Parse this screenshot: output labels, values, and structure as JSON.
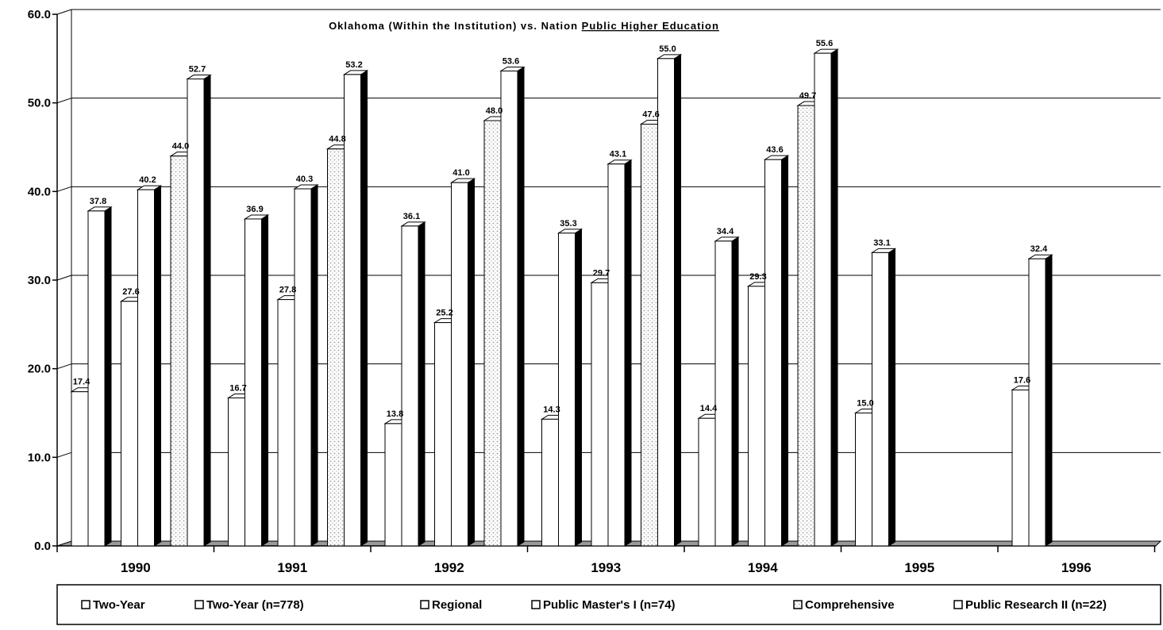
{
  "chart_data": {
    "type": "bar",
    "title": "Oklahoma (Within the Institution) vs. Nation ",
    "title_underlined": "Public Higher Education",
    "xlabel": "",
    "ylabel": "",
    "ylim": [
      0,
      60
    ],
    "yticks": [
      "0.0",
      "10.0",
      "20.0",
      "30.0",
      "40.0",
      "50.0",
      "60.0"
    ],
    "grid": true,
    "legend_position": "bottom",
    "categories": [
      "1990",
      "1991",
      "1992",
      "1993",
      "1994",
      "1995",
      "1996"
    ],
    "series": [
      {
        "name": "Two-Year",
        "pattern": "plain",
        "values": [
          17.4,
          16.7,
          13.8,
          14.3,
          14.4,
          15.0,
          17.6
        ]
      },
      {
        "name": "Two-Year (n=778)",
        "pattern": "plain",
        "values": [
          37.8,
          36.9,
          36.1,
          35.3,
          34.4,
          33.1,
          32.4
        ]
      },
      {
        "name": "Regional",
        "pattern": "plain",
        "values": [
          27.6,
          27.8,
          25.2,
          29.7,
          29.3,
          null,
          null
        ]
      },
      {
        "name": "Public Master's I (n=74)",
        "pattern": "plain",
        "values": [
          40.2,
          40.3,
          41.0,
          43.1,
          43.6,
          null,
          null
        ]
      },
      {
        "name": "Comprehensive",
        "pattern": "dotted",
        "values": [
          44.0,
          44.8,
          48.0,
          47.6,
          49.7,
          null,
          null
        ]
      },
      {
        "name": "Public Research II (n=22)",
        "pattern": "plain",
        "values": [
          52.7,
          53.2,
          53.6,
          55.0,
          55.6,
          null,
          null
        ]
      }
    ],
    "value_labels": [
      [
        "17.4",
        "16.7",
        "13.8",
        "14.3",
        "14.4",
        "15.0",
        "17.6"
      ],
      [
        "37.8",
        "36.9",
        "36.1",
        "35.3",
        "34.4",
        "33.1",
        "32.4"
      ],
      [
        "27.6",
        "27.8",
        "25.2",
        "29.7",
        "29.3",
        "",
        ""
      ],
      [
        "40.2",
        "40.3",
        "41.0",
        "43.1",
        "43.6",
        "",
        ""
      ],
      [
        "44.0",
        "44.8",
        "48.0",
        "47.6",
        "49.7",
        "",
        ""
      ],
      [
        "52.7",
        "53.2",
        "53.6",
        "55.0",
        "55.6",
        "",
        ""
      ]
    ],
    "colors": {
      "bar_face": "#ffffff",
      "bar_side": "#000000",
      "dotted_fill": "#9a9a9a",
      "floor": "#9a9a9a",
      "grid": "#000000"
    }
  }
}
